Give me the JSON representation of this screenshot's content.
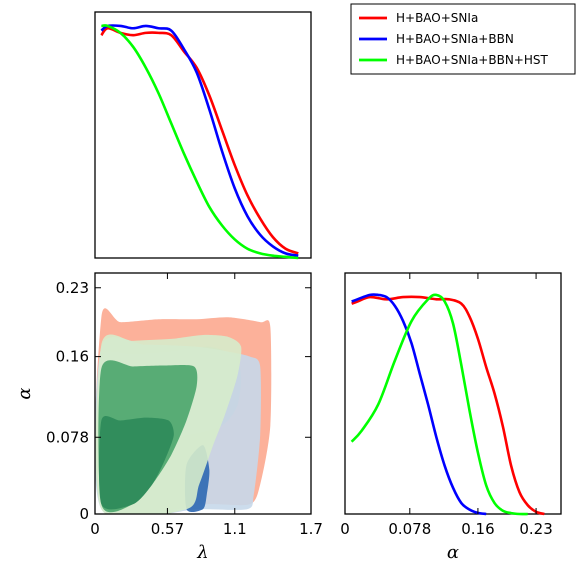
{
  "colors": {
    "H+BAO+SNIa": "#ff0000",
    "H+BAO+SNIa+BBN": "#0000ff",
    "H+BAO+SNIa+BBN+HST": "#00ff00"
  },
  "chart_data": [
    {
      "panel": "lambda-marginal",
      "type": "line",
      "xlim": [
        0,
        1.7
      ],
      "ylim": [
        0,
        1
      ],
      "x_ticks": [],
      "y_ticks": [],
      "series": [
        {
          "name": "H+BAO+SNIa",
          "x": [
            0.05,
            0.1,
            0.2,
            0.3,
            0.4,
            0.5,
            0.6,
            0.7,
            0.8,
            0.9,
            1.0,
            1.1,
            1.2,
            1.3,
            1.4,
            1.5,
            1.6
          ],
          "y": [
            0.96,
            0.99,
            0.97,
            0.96,
            0.97,
            0.97,
            0.96,
            0.89,
            0.82,
            0.7,
            0.55,
            0.4,
            0.27,
            0.17,
            0.09,
            0.04,
            0.02
          ]
        },
        {
          "name": "H+BAO+SNIa+BBN",
          "x": [
            0.05,
            0.1,
            0.2,
            0.3,
            0.4,
            0.5,
            0.6,
            0.7,
            0.8,
            0.9,
            1.0,
            1.1,
            1.2,
            1.3,
            1.4,
            1.5,
            1.6
          ],
          "y": [
            0.98,
            1.0,
            1.0,
            0.99,
            1.0,
            0.99,
            0.98,
            0.9,
            0.8,
            0.64,
            0.46,
            0.3,
            0.18,
            0.1,
            0.05,
            0.02,
            0.01
          ]
        },
        {
          "name": "H+BAO+SNIa+BBN+HST",
          "x": [
            0.05,
            0.1,
            0.2,
            0.3,
            0.4,
            0.5,
            0.6,
            0.7,
            0.8,
            0.9,
            1.0,
            1.1,
            1.2,
            1.3,
            1.4,
            1.5,
            1.6
          ],
          "y": [
            1.0,
            1.0,
            0.97,
            0.91,
            0.82,
            0.71,
            0.58,
            0.45,
            0.33,
            0.22,
            0.14,
            0.08,
            0.04,
            0.02,
            0.01,
            0.005,
            0.0
          ]
        }
      ]
    },
    {
      "panel": "lambda-alpha-contours",
      "type": "area",
      "xlabel": "λ",
      "ylabel": "α",
      "xlim": [
        0,
        1.7
      ],
      "ylim": [
        0,
        0.245
      ],
      "x_ticks": [
        "0",
        "0.57",
        "1.1",
        "1.7"
      ],
      "x_tick_values": [
        0,
        0.57,
        1.1,
        1.7
      ],
      "y_ticks": [
        "0",
        "0.078",
        "0.16",
        "0.23"
      ],
      "y_tick_values": [
        0,
        0.078,
        0.16,
        0.23
      ],
      "regions": [
        {
          "name": "H+BAO+SNIa",
          "level": "95%",
          "color": "#fca98f",
          "points": [
            [
              0.05,
              0.2
            ],
            [
              0.2,
              0.195
            ],
            [
              0.5,
              0.198
            ],
            [
              0.8,
              0.198
            ],
            [
              1.05,
              0.2
            ],
            [
              1.3,
              0.195
            ],
            [
              1.38,
              0.19
            ],
            [
              1.38,
              0.09
            ],
            [
              1.3,
              0.03
            ],
            [
              1.22,
              0.01
            ],
            [
              0.9,
              0.01
            ],
            [
              0.05,
              0.01
            ]
          ]
        },
        {
          "name": "H+BAO+SNIa",
          "level": "68%",
          "color": "#c2baa6",
          "points": [
            [
              0.05,
              0.16
            ],
            [
              0.3,
              0.162
            ],
            [
              0.6,
              0.165
            ],
            [
              0.9,
              0.17
            ],
            [
              1.1,
              0.16
            ],
            [
              1.15,
              0.14
            ],
            [
              1.12,
              0.11
            ],
            [
              1.0,
              0.09
            ],
            [
              0.7,
              0.08
            ],
            [
              0.3,
              0.08
            ],
            [
              0.05,
              0.08
            ]
          ]
        },
        {
          "name": "H+BAO+SNIa+BBN",
          "level": "95%",
          "color": "#c6d8ea",
          "points": [
            [
              0.05,
              0.17
            ],
            [
              0.4,
              0.172
            ],
            [
              0.8,
              0.17
            ],
            [
              1.05,
              0.165
            ],
            [
              1.22,
              0.16
            ],
            [
              1.3,
              0.15
            ],
            [
              1.3,
              0.08
            ],
            [
              1.25,
              0.02
            ],
            [
              1.2,
              0.005
            ],
            [
              0.82,
              0.005
            ],
            [
              0.05,
              0.005
            ]
          ]
        },
        {
          "name": "H+BAO+SNIa+BBN",
          "level": "68%",
          "color": "#2d68b3",
          "points": [
            [
              0.72,
              0.05
            ],
            [
              0.85,
              0.07
            ],
            [
              0.9,
              0.045
            ],
            [
              0.88,
              0.02
            ],
            [
              0.85,
              0.005
            ],
            [
              0.72,
              0.005
            ]
          ]
        },
        {
          "name": "H+BAO+SNIa+BBN+HST",
          "level": "95%",
          "color": "#d6eccb",
          "points": [
            [
              0.05,
              0.172
            ],
            [
              0.3,
              0.176
            ],
            [
              0.6,
              0.178
            ],
            [
              0.85,
              0.182
            ],
            [
              1.05,
              0.18
            ],
            [
              1.15,
              0.17
            ],
            [
              1.12,
              0.14
            ],
            [
              1.02,
              0.1
            ],
            [
              0.93,
              0.07
            ],
            [
              0.82,
              0.03
            ],
            [
              0.72,
              0.005
            ],
            [
              0.05,
              0.005
            ]
          ]
        },
        {
          "name": "H+BAO+SNIa+BBN+HST",
          "level": "68%",
          "color": "#4aa56b",
          "points": [
            [
              0.05,
              0.148
            ],
            [
              0.3,
              0.15
            ],
            [
              0.55,
              0.151
            ],
            [
              0.78,
              0.15
            ],
            [
              0.8,
              0.13
            ],
            [
              0.72,
              0.095
            ],
            [
              0.6,
              0.06
            ],
            [
              0.45,
              0.03
            ],
            [
              0.3,
              0.01
            ],
            [
              0.05,
              0.01
            ]
          ]
        },
        {
          "name": "H+BAO+SNIa+BBN+HST",
          "level": "core",
          "color": "#2e8a5a",
          "points": [
            [
              0.05,
              0.095
            ],
            [
              0.2,
              0.095
            ],
            [
              0.4,
              0.098
            ],
            [
              0.58,
              0.095
            ],
            [
              0.62,
              0.08
            ],
            [
              0.55,
              0.055
            ],
            [
              0.45,
              0.03
            ],
            [
              0.3,
              0.01
            ],
            [
              0.05,
              0.01
            ]
          ]
        }
      ]
    },
    {
      "panel": "alpha-marginal",
      "type": "line",
      "xlabel": "α",
      "xlim": [
        0,
        0.26
      ],
      "ylim": [
        0,
        1
      ],
      "x_ticks": [
        "0",
        "0.078",
        "0.16",
        "0.23"
      ],
      "x_tick_values": [
        0,
        0.078,
        0.16,
        0.23
      ],
      "y_ticks": [],
      "series": [
        {
          "name": "H+BAO+SNIa",
          "x": [
            0.008,
            0.015,
            0.03,
            0.05,
            0.07,
            0.09,
            0.11,
            0.125,
            0.14,
            0.15,
            0.16,
            0.17,
            0.18,
            0.19,
            0.2,
            0.21,
            0.22,
            0.23,
            0.24
          ],
          "y": [
            0.96,
            0.97,
            0.99,
            0.98,
            0.99,
            0.99,
            0.98,
            0.98,
            0.96,
            0.9,
            0.8,
            0.67,
            0.55,
            0.4,
            0.22,
            0.1,
            0.04,
            0.01,
            0.0
          ]
        },
        {
          "name": "H+BAO+SNIa+BBN",
          "x": [
            0.008,
            0.015,
            0.03,
            0.04,
            0.05,
            0.06,
            0.07,
            0.08,
            0.09,
            0.1,
            0.11,
            0.12,
            0.13,
            0.14,
            0.15,
            0.16,
            0.17
          ],
          "y": [
            0.97,
            0.98,
            1.0,
            1.0,
            0.99,
            0.95,
            0.88,
            0.78,
            0.64,
            0.5,
            0.35,
            0.22,
            0.12,
            0.05,
            0.02,
            0.005,
            0.0
          ]
        },
        {
          "name": "H+BAO+SNIa+BBN+HST",
          "x": [
            0.008,
            0.02,
            0.04,
            0.06,
            0.08,
            0.1,
            0.11,
            0.12,
            0.13,
            0.14,
            0.15,
            0.16,
            0.17,
            0.18,
            0.19,
            0.2,
            0.21,
            0.22
          ],
          "y": [
            0.33,
            0.38,
            0.5,
            0.7,
            0.88,
            0.98,
            1.0,
            0.97,
            0.87,
            0.68,
            0.47,
            0.28,
            0.13,
            0.05,
            0.015,
            0.004,
            0.0,
            0.0
          ]
        }
      ]
    }
  ],
  "legend": {
    "items": [
      {
        "label": "H+BAO+SNIa",
        "color": "#ff0000"
      },
      {
        "label": "H+BAO+SNIa+BBN",
        "color": "#0000ff"
      },
      {
        "label": "H+BAO+SNIa+BBN+HST",
        "color": "#00ff00"
      }
    ]
  }
}
